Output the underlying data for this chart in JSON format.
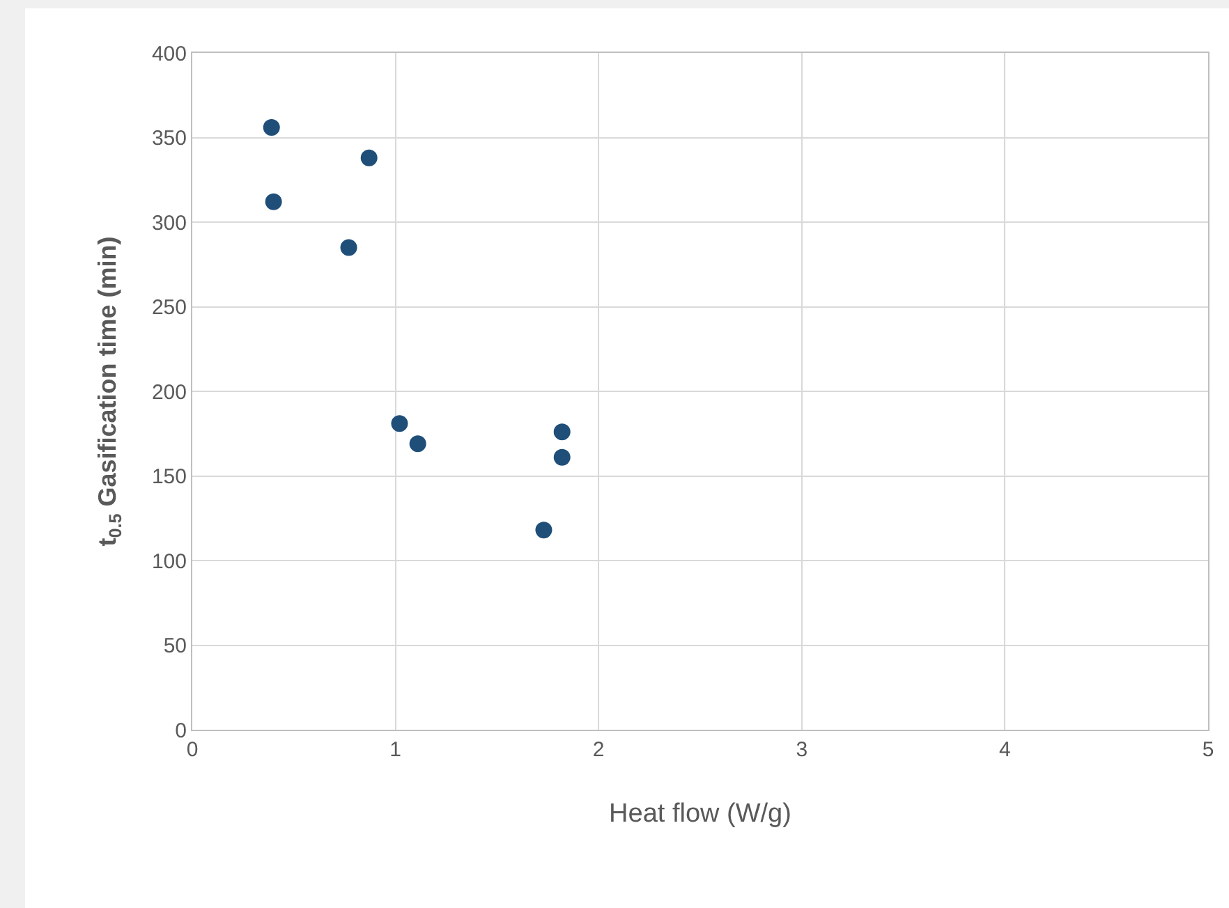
{
  "chart_data": {
    "type": "scatter",
    "xlabel": "Heat flow (W/g)",
    "ylabel": "t$_{0.5}$ Gasification time (min)",
    "x": [
      0.39,
      0.4,
      0.87,
      0.77,
      1.02,
      1.11,
      1.82,
      1.82,
      1.73
    ],
    "values": [
      356,
      312,
      338,
      285,
      181,
      169,
      176,
      161,
      118
    ],
    "color": "#1f4e79",
    "marker": "circle",
    "xlim": [
      0,
      5
    ],
    "xticks": [
      0,
      1,
      2,
      3,
      4,
      5
    ],
    "ylim": [
      0,
      400
    ],
    "yticks": [
      0,
      50,
      100,
      150,
      200,
      250,
      300,
      350,
      400
    ],
    "grid": true
  }
}
